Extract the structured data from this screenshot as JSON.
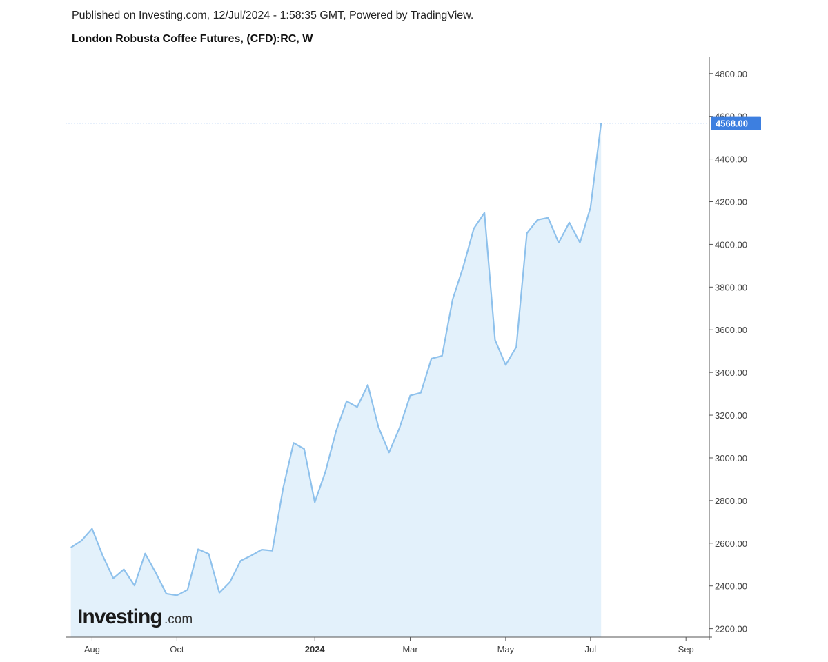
{
  "header": {
    "published": "Published on Investing.com, 12/Jul/2024 - 1:58:35 GMT, Powered by TradingView.",
    "title": "London Robusta Coffee Futures, (CFD):RC, W"
  },
  "logo": {
    "main": "Investing",
    "suffix": ".com"
  },
  "colors": {
    "line": "#8ec1ec",
    "fill": "#e3f1fb",
    "last_price_bg": "#3d7fe0",
    "last_price_line": "#3d7fe0",
    "axis": "#555555"
  },
  "chart_data": {
    "type": "area",
    "title": "London Robusta Coffee Futures, (CFD):RC, W",
    "x_tick_labels": [
      {
        "label": "Aug",
        "index": 2,
        "bold": false
      },
      {
        "label": "Oct",
        "index": 10,
        "bold": false
      },
      {
        "label": "2024",
        "index": 23,
        "bold": true
      },
      {
        "label": "Mar",
        "index": 32,
        "bold": false
      },
      {
        "label": "May",
        "index": 41,
        "bold": false
      },
      {
        "label": "Jul",
        "index": 49,
        "bold": false
      },
      {
        "label": "Sep",
        "index": 58,
        "bold": false
      }
    ],
    "y_ticks": [
      2200,
      2400,
      2600,
      2800,
      3000,
      3200,
      3400,
      3600,
      3800,
      4000,
      4200,
      4400,
      4600,
      4800
    ],
    "y_tick_labels": [
      "2200.00",
      "2400.00",
      "2600.00",
      "2800.00",
      "3000.00",
      "3200.00",
      "3400.00",
      "3600.00",
      "3800.00",
      "4000.00",
      "4200.00",
      "4400.00",
      "4600.00",
      "4800.00"
    ],
    "ylim": [
      2160,
      4880
    ],
    "x_index_range": [
      -0.5,
      60.2
    ],
    "last_value": 4568,
    "last_value_label": "4568.00",
    "series": [
      {
        "values": [
          2580,
          2612,
          2668,
          2542,
          2436,
          2478,
          2402,
          2552,
          2462,
          2364,
          2356,
          2382,
          2572,
          2550,
          2368,
          2418,
          2518,
          2542,
          2570,
          2565,
          2855,
          3070,
          3042,
          2792,
          2935,
          3125,
          3265,
          3238,
          3342,
          3145,
          3025,
          3142,
          3292,
          3305,
          3465,
          3478,
          3742,
          3895,
          4075,
          4148,
          3552,
          3435,
          3520,
          4052,
          4115,
          4125,
          4008,
          4102,
          4008,
          4172,
          4568
        ]
      }
    ]
  }
}
